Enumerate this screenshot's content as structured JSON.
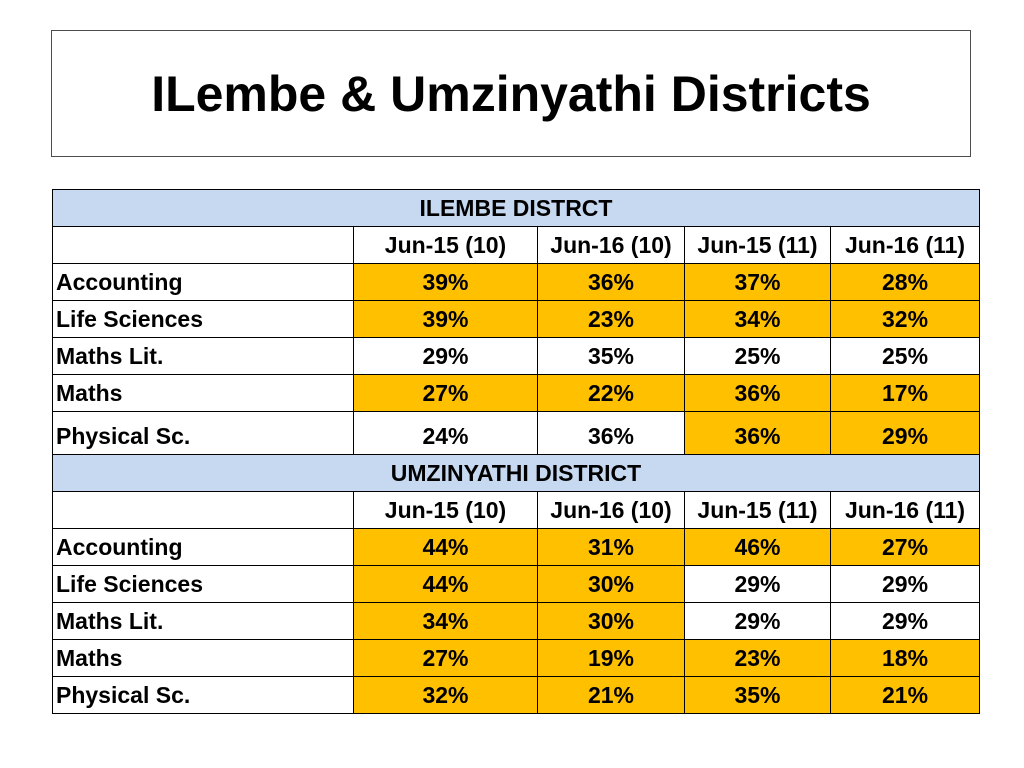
{
  "title": "ILembe & Umzinyathi Districts",
  "colors": {
    "highlight": "#ffc000",
    "section_header": "#c6d9f0"
  },
  "sections": [
    {
      "name": "ILEMBE DISTRCT",
      "columns": [
        "Jun-15 (10)",
        "Jun-16 (10)",
        "Jun-15 (11)",
        "Jun-16 (11)"
      ],
      "rows": [
        {
          "subject": "Accounting",
          "values": [
            "39%",
            "36%",
            "37%",
            "28%"
          ],
          "highlight": [
            true,
            true,
            true,
            true
          ]
        },
        {
          "subject": "Life Sciences",
          "values": [
            "39%",
            "23%",
            "34%",
            "32%"
          ],
          "highlight": [
            true,
            true,
            true,
            true
          ]
        },
        {
          "subject": "Maths Lit.",
          "values": [
            "29%",
            "35%",
            "25%",
            "25%"
          ],
          "highlight": [
            false,
            false,
            false,
            false
          ]
        },
        {
          "subject": "Maths",
          "values": [
            "27%",
            "22%",
            "36%",
            "17%"
          ],
          "highlight": [
            true,
            true,
            true,
            true
          ]
        },
        {
          "subject": "Physical Sc.",
          "values": [
            "24%",
            "36%",
            "36%",
            "29%"
          ],
          "highlight": [
            false,
            false,
            true,
            true
          ]
        }
      ]
    },
    {
      "name": "UMZINYATHI DISTRICT",
      "columns": [
        "Jun-15 (10)",
        "Jun-16 (10)",
        "Jun-15 (11)",
        "Jun-16 (11)"
      ],
      "rows": [
        {
          "subject": "Accounting",
          "values": [
            "44%",
            "31%",
            "46%",
            "27%"
          ],
          "highlight": [
            true,
            true,
            true,
            true
          ]
        },
        {
          "subject": "Life Sciences",
          "values": [
            "44%",
            "30%",
            "29%",
            "29%"
          ],
          "highlight": [
            true,
            true,
            false,
            false
          ]
        },
        {
          "subject": "Maths Lit.",
          "values": [
            "34%",
            "30%",
            "29%",
            "29%"
          ],
          "highlight": [
            true,
            true,
            false,
            false
          ]
        },
        {
          "subject": "Maths",
          "values": [
            "27%",
            "19%",
            "23%",
            "18%"
          ],
          "highlight": [
            true,
            true,
            true,
            true
          ]
        },
        {
          "subject": "Physical Sc.",
          "values": [
            "32%",
            "21%",
            "35%",
            "21%"
          ],
          "highlight": [
            true,
            true,
            true,
            true
          ]
        }
      ]
    }
  ]
}
